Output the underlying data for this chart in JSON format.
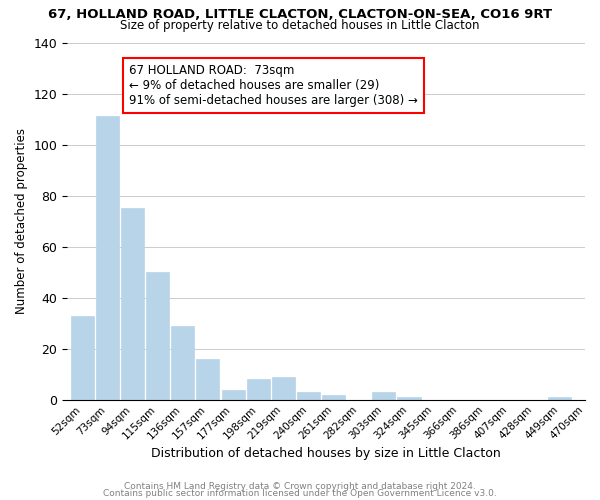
{
  "title": "67, HOLLAND ROAD, LITTLE CLACTON, CLACTON-ON-SEA, CO16 9RT",
  "subtitle": "Size of property relative to detached houses in Little Clacton",
  "xlabel": "Distribution of detached houses by size in Little Clacton",
  "ylabel": "Number of detached properties",
  "bar_color": "#b8d4e8",
  "bin_labels": [
    "52sqm",
    "73sqm",
    "94sqm",
    "115sqm",
    "136sqm",
    "157sqm",
    "177sqm",
    "198sqm",
    "219sqm",
    "240sqm",
    "261sqm",
    "282sqm",
    "303sqm",
    "324sqm",
    "345sqm",
    "366sqm",
    "386sqm",
    "407sqm",
    "428sqm",
    "449sqm",
    "470sqm"
  ],
  "bar_values": [
    33,
    111,
    75,
    50,
    29,
    16,
    4,
    8,
    9,
    3,
    2,
    0,
    3,
    1,
    0,
    0,
    0,
    0,
    0,
    1
  ],
  "ylim": [
    0,
    140
  ],
  "yticks": [
    0,
    20,
    40,
    60,
    80,
    100,
    120,
    140
  ],
  "annotation_box_text": "67 HOLLAND ROAD:  73sqm\n← 9% of detached houses are smaller (29)\n91% of semi-detached houses are larger (308) →",
  "footer_line1": "Contains HM Land Registry data © Crown copyright and database right 2024.",
  "footer_line2": "Contains public sector information licensed under the Open Government Licence v3.0.",
  "background_color": "#ffffff",
  "grid_color": "#cccccc"
}
